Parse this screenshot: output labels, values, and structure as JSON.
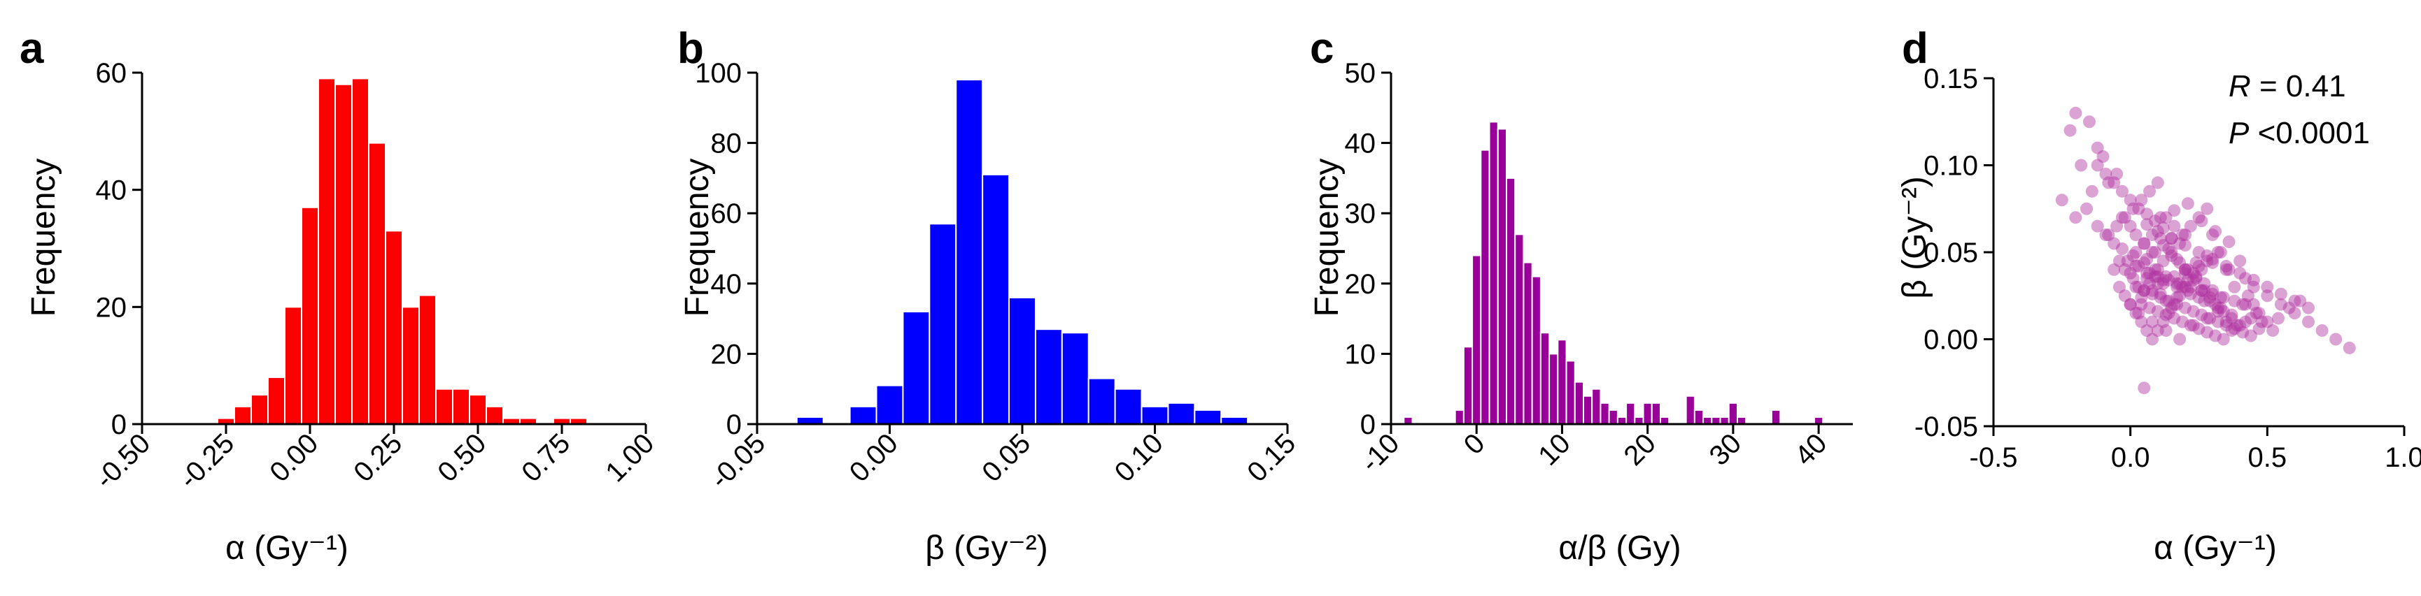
{
  "chart_data": [
    {
      "panel": "a",
      "type": "bar",
      "title": "",
      "xlabel": "α (Gy⁻¹)",
      "ylabel": "Frequency",
      "xlim": [
        -0.5,
        1.0
      ],
      "ylim": [
        0,
        60
      ],
      "xticks": [
        -0.5,
        -0.25,
        0.0,
        0.25,
        0.5,
        0.75,
        1.0
      ],
      "xtick_labels": [
        "-0.50",
        "-0.25",
        "0.00",
        "0.25",
        "0.50",
        "0.75",
        "1.00"
      ],
      "yticks": [
        0,
        20,
        40,
        60
      ],
      "ytick_labels": [
        "0",
        "20",
        "40",
        "60"
      ],
      "color": "#ff0000",
      "bin_width": 0.05,
      "bin_centers": [
        -0.25,
        -0.2,
        -0.15,
        -0.1,
        -0.05,
        0.0,
        0.05,
        0.1,
        0.15,
        0.2,
        0.25,
        0.3,
        0.35,
        0.4,
        0.45,
        0.5,
        0.55,
        0.6,
        0.65,
        0.75,
        0.8
      ],
      "values": [
        1,
        3,
        5,
        8,
        20,
        37,
        59,
        58,
        59,
        48,
        33,
        20,
        22,
        6,
        6,
        5,
        3,
        1,
        1,
        1,
        1
      ]
    },
    {
      "panel": "b",
      "type": "bar",
      "title": "",
      "xlabel": "β (Gy⁻²)",
      "ylabel": "Frequency",
      "xlim": [
        -0.05,
        0.15
      ],
      "ylim": [
        0,
        100
      ],
      "xticks": [
        -0.05,
        0.0,
        0.05,
        0.1,
        0.15
      ],
      "xtick_labels": [
        "-0.05",
        "0.00",
        "0.05",
        "0.10",
        "0.15"
      ],
      "yticks": [
        0,
        20,
        40,
        60,
        80,
        100
      ],
      "ytick_labels": [
        "0",
        "20",
        "40",
        "60",
        "80",
        "100"
      ],
      "color": "#0000ff",
      "bin_width": 0.01,
      "bin_centers": [
        -0.03,
        -0.01,
        0.0,
        0.01,
        0.02,
        0.03,
        0.04,
        0.05,
        0.06,
        0.07,
        0.08,
        0.09,
        0.1,
        0.11,
        0.12,
        0.13
      ],
      "values": [
        2,
        5,
        11,
        32,
        57,
        98,
        71,
        36,
        27,
        26,
        13,
        10,
        5,
        6,
        4,
        2
      ]
    },
    {
      "panel": "c",
      "type": "bar",
      "title": "",
      "xlabel": "α/β (Gy)",
      "ylabel": "Frequency",
      "xlim": [
        -10,
        44
      ],
      "ylim": [
        0,
        50
      ],
      "xticks": [
        -10,
        0,
        10,
        20,
        30,
        40
      ],
      "xtick_labels": [
        "-10",
        "0",
        "10",
        "20",
        "30",
        "40"
      ],
      "yticks": [
        0,
        10,
        20,
        30,
        40,
        50
      ],
      "ytick_labels": [
        "0",
        "10",
        "20",
        "30",
        "40",
        "50"
      ],
      "color": "#990099",
      "bin_width": 1,
      "bin_centers": [
        -8,
        -2,
        -1,
        0,
        1,
        2,
        3,
        4,
        5,
        6,
        7,
        8,
        9,
        10,
        11,
        12,
        13,
        14,
        15,
        16,
        17,
        18,
        19,
        20,
        21,
        22,
        25,
        26,
        27,
        28,
        29,
        30,
        31,
        35,
        40
      ],
      "values": [
        1,
        2,
        11,
        24,
        39,
        43,
        42,
        35,
        27,
        23,
        21,
        13,
        10,
        12,
        9,
        6,
        4,
        5,
        3,
        2,
        1,
        3,
        1,
        3,
        3,
        1,
        4,
        2,
        1,
        1,
        1,
        3,
        1,
        2,
        1
      ]
    },
    {
      "panel": "d",
      "type": "scatter",
      "title": "",
      "xlabel": "α (Gy⁻¹)",
      "ylabel": "β (Gy⁻²)",
      "xlim": [
        -0.5,
        1.0
      ],
      "ylim": [
        -0.05,
        0.15
      ],
      "xticks": [
        -0.5,
        0.0,
        0.5,
        1.0
      ],
      "xtick_labels": [
        "-0.5",
        "0.0",
        "0.5",
        "1.0"
      ],
      "yticks": [
        -0.05,
        0.0,
        0.05,
        0.1,
        0.15
      ],
      "ytick_labels": [
        "-0.05",
        "0.00",
        "0.05",
        "0.10",
        "0.15"
      ],
      "color": "#b030a0",
      "annotations": {
        "r_label": "R",
        "r_value": " = 0.41",
        "p_label": "P",
        "p_value": " <0.0001"
      },
      "points": {
        "x": [
          -0.2,
          -0.15,
          -0.12,
          -0.22,
          -0.18,
          -0.1,
          -0.05,
          -0.08,
          -0.14,
          -0.25,
          -0.2,
          -0.16,
          -0.12,
          -0.09,
          -0.06,
          -0.03,
          0.0,
          0.02,
          0.05,
          0.08,
          -0.04,
          -0.02,
          0.01,
          0.03,
          0.06,
          0.1,
          0.12,
          0.15,
          0.18,
          0.2,
          0.22,
          0.25,
          0.28,
          0.3,
          0.33,
          0.35,
          0.4,
          0.42,
          0.45,
          0.5,
          0.55,
          0.6,
          0.65,
          0.7,
          0.75,
          0.8,
          0.5,
          0.45,
          0.38,
          0.36,
          0.32,
          0.28,
          0.26,
          0.24,
          0.2,
          0.18,
          0.16,
          0.14,
          0.12,
          0.1,
          0.08,
          0.06,
          0.04,
          0.02,
          0.0,
          -0.02,
          -0.04,
          -0.06,
          0.05,
          0.07,
          0.09,
          0.11,
          0.13,
          0.15,
          0.17,
          0.19,
          0.21,
          0.23,
          0.25,
          0.27,
          0.29,
          0.31,
          0.34,
          0.37,
          0.39,
          0.41,
          0.43,
          0.46,
          0.48,
          0.52,
          0.54,
          0.58,
          0.62,
          0.0,
          0.03,
          0.06,
          0.09,
          0.12,
          0.15,
          0.18,
          0.21,
          0.24,
          0.27,
          0.3,
          0.33,
          -0.01,
          0.02,
          0.05,
          0.08,
          0.11,
          0.14,
          0.17,
          0.2,
          0.23,
          0.26,
          0.29,
          0.32,
          0.35,
          0.04,
          0.07,
          0.1,
          0.13,
          0.16,
          0.19,
          0.22,
          0.25,
          0.28,
          0.31,
          0.34,
          0.37,
          0.4,
          0.44,
          0.47,
          -0.08,
          -0.05,
          -0.02,
          0.01,
          0.04,
          0.07,
          0.1,
          0.13,
          0.16,
          0.19,
          -0.12,
          -0.09,
          -0.06,
          -0.03,
          0.0,
          0.03,
          0.06,
          0.09,
          0.12,
          0.15,
          0.02,
          0.05,
          0.08,
          0.11,
          0.14,
          0.17,
          0.2,
          0.23,
          0.26,
          0.29,
          0.32,
          0.35,
          0.38,
          0.41,
          0.44,
          0.0,
          0.04,
          0.08,
          0.12,
          0.16,
          0.2,
          0.24,
          0.28,
          0.06,
          0.1,
          0.14,
          0.18,
          0.22,
          0.26,
          0.3,
          0.34,
          0.38,
          0.42,
          -0.03,
          0.01,
          0.05,
          0.09,
          0.13,
          0.17,
          0.21,
          0.25,
          0.1,
          0.15,
          0.2,
          0.25,
          0.3,
          0.35,
          0.4,
          0.45,
          0.5,
          0.55,
          0.03,
          0.08,
          0.13,
          0.18,
          0.23,
          0.28,
          0.33,
          0.02,
          0.07,
          0.12,
          0.17,
          0.22,
          0.27,
          0.32,
          0.37,
          0.42,
          0.47,
          0.06,
          0.11,
          0.16,
          0.21,
          0.26,
          0.31,
          0.36,
          0.6,
          0.65,
          0.05,
          0.1,
          0.2,
          0.3
        ],
        "y": [
          0.13,
          0.125,
          0.11,
          0.12,
          0.1,
          0.105,
          0.095,
          0.09,
          0.085,
          0.08,
          0.07,
          0.075,
          0.065,
          0.06,
          0.055,
          0.07,
          0.065,
          0.06,
          0.055,
          0.05,
          0.045,
          0.04,
          0.035,
          0.03,
          0.035,
          0.04,
          0.045,
          0.05,
          0.055,
          0.06,
          0.065,
          0.07,
          0.075,
          0.06,
          0.05,
          0.04,
          0.045,
          0.035,
          0.03,
          0.025,
          0.02,
          0.015,
          0.01,
          0.005,
          0.0,
          -0.005,
          0.01,
          0.02,
          0.03,
          0.04,
          0.05,
          0.045,
          0.04,
          0.035,
          0.03,
          0.025,
          0.02,
          0.015,
          0.01,
          0.005,
          0.0,
          0.005,
          0.01,
          0.015,
          0.02,
          0.025,
          0.03,
          0.04,
          0.028,
          0.032,
          0.036,
          0.026,
          0.022,
          0.018,
          0.024,
          0.03,
          0.034,
          0.038,
          0.042,
          0.028,
          0.024,
          0.02,
          0.016,
          0.012,
          0.008,
          0.02,
          0.025,
          0.015,
          0.01,
          0.005,
          0.012,
          0.018,
          0.022,
          0.038,
          0.042,
          0.046,
          0.05,
          0.054,
          0.048,
          0.044,
          0.04,
          0.036,
          0.032,
          0.028,
          0.024,
          0.045,
          0.05,
          0.055,
          0.06,
          0.058,
          0.052,
          0.046,
          0.04,
          0.034,
          0.028,
          0.022,
          0.016,
          0.01,
          0.02,
          0.018,
          0.016,
          0.014,
          0.012,
          0.01,
          0.008,
          0.006,
          0.004,
          0.002,
          0.0,
          0.005,
          0.008,
          0.012,
          0.015,
          0.06,
          0.065,
          0.07,
          0.075,
          0.08,
          0.085,
          0.09,
          0.07,
          0.065,
          0.06,
          0.1,
          0.095,
          0.09,
          0.085,
          0.08,
          0.075,
          0.072,
          0.068,
          0.064,
          0.058,
          0.03,
          0.028,
          0.026,
          0.024,
          0.022,
          0.02,
          0.018,
          0.016,
          0.014,
          0.012,
          0.01,
          0.008,
          0.006,
          0.004,
          0.002,
          0.02,
          0.024,
          0.028,
          0.032,
          0.036,
          0.04,
          0.044,
          0.048,
          0.038,
          0.036,
          0.034,
          0.032,
          0.03,
          0.028,
          0.026,
          0.024,
          0.022,
          0.02,
          0.052,
          0.048,
          0.044,
          0.04,
          0.036,
          0.032,
          0.028,
          0.024,
          0.062,
          0.058,
          0.054,
          0.05,
          0.046,
          0.042,
          0.038,
          0.034,
          0.03,
          0.026,
          0.015,
          0.01,
          0.005,
          0.0,
          0.008,
          0.012,
          0.018,
          0.042,
          0.038,
          0.034,
          0.03,
          0.026,
          0.022,
          0.018,
          0.014,
          0.01,
          0.006,
          0.066,
          0.07,
          0.074,
          0.078,
          0.068,
          0.062,
          0.056,
          0.022,
          0.018,
          -0.028,
          0.032,
          0.038,
          0.044
        ]
      }
    }
  ],
  "panels": {
    "a": {
      "label": "a"
    },
    "b": {
      "label": "b"
    },
    "c": {
      "label": "c"
    },
    "d": {
      "label": "d"
    }
  }
}
